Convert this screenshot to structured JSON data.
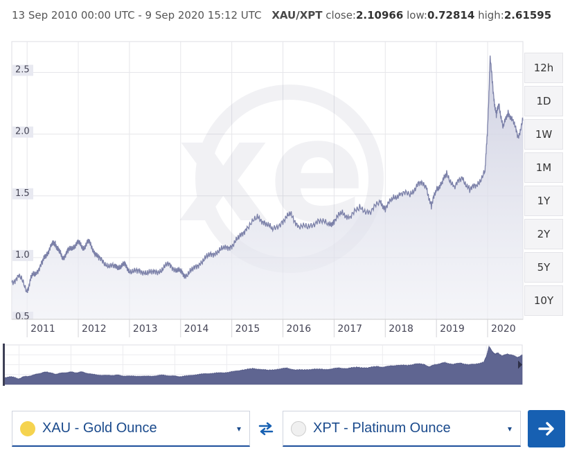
{
  "header": {
    "date_range": "13 Sep 2010 00:00 UTC - 9 Sep 2020 15:12 UTC",
    "pair": "XAU/XPT",
    "close_label": "close:",
    "close_value": "2.10966",
    "low_label": "low:",
    "low_value": "0.72814",
    "high_label": "high:",
    "high_value": "2.61595"
  },
  "watermark": "xe",
  "range_buttons": [
    "12h",
    "1D",
    "1W",
    "1M",
    "1Y",
    "2Y",
    "5Y",
    "10Y"
  ],
  "converter": {
    "from_label": "XAU - Gold Ounce",
    "to_label": "XPT - Platinum Ounce",
    "from_flag_color": "#f5d34f",
    "to_flag_color": "#f0f0f0",
    "accent_color": "#1760b2",
    "icons": {
      "caret": "▾",
      "swap": "swap-arrows-icon",
      "go": "arrow-right-icon"
    }
  },
  "chart_data": {
    "type": "area",
    "x_ticks": [
      "2011",
      "2012",
      "2013",
      "2014",
      "2015",
      "2016",
      "2017",
      "2018",
      "2019",
      "2020"
    ],
    "y_ticks": [
      "0.5",
      "1.0",
      "1.5",
      "2.0",
      "2.5"
    ],
    "ylim": [
      0.5,
      2.75
    ],
    "grid": true,
    "line_color": "#7b80a8",
    "fill_color": "#dcdde9",
    "series": [
      {
        "x": [
          2010.7,
          2010.85,
          2011.0,
          2011.08,
          2011.18,
          2011.3,
          2011.38,
          2011.48,
          2011.55,
          2011.62,
          2011.7,
          2011.8,
          2011.9,
          2012.0,
          2012.1,
          2012.2,
          2012.3,
          2012.4,
          2012.55,
          2012.7,
          2012.8,
          2012.9,
          2013.0,
          2013.15,
          2013.3,
          2013.45,
          2013.6,
          2013.75,
          2013.9,
          2014.0,
          2014.1,
          2014.25,
          2014.4,
          2014.55,
          2014.7,
          2014.85,
          2015.0,
          2015.15,
          2015.3,
          2015.5,
          2015.65,
          2015.8,
          2016.0,
          2016.15,
          2016.3,
          2016.5,
          2016.7,
          2016.9,
          2017.0,
          2017.15,
          2017.3,
          2017.5,
          2017.7,
          2017.9,
          2018.0,
          2018.15,
          2018.3,
          2018.5,
          2018.65,
          2018.8,
          2018.9,
          2019.0,
          2019.1,
          2019.2,
          2019.35,
          2019.5,
          2019.65,
          2019.8,
          2019.95,
          2020.0,
          2020.05,
          2020.12,
          2020.17,
          2020.22,
          2020.3,
          2020.4,
          2020.5,
          2020.6,
          2020.69
        ],
        "values": [
          0.8,
          0.85,
          0.73,
          0.84,
          0.88,
          0.96,
          1.03,
          1.1,
          1.12,
          1.05,
          1.0,
          1.05,
          1.09,
          1.12,
          1.08,
          1.13,
          1.06,
          0.99,
          0.95,
          0.92,
          0.93,
          0.94,
          0.9,
          0.88,
          0.89,
          0.87,
          0.9,
          0.94,
          0.91,
          0.88,
          0.86,
          0.9,
          0.97,
          1.01,
          1.05,
          1.07,
          1.1,
          1.16,
          1.25,
          1.32,
          1.29,
          1.22,
          1.3,
          1.35,
          1.26,
          1.24,
          1.31,
          1.26,
          1.3,
          1.36,
          1.33,
          1.4,
          1.37,
          1.45,
          1.4,
          1.48,
          1.52,
          1.51,
          1.61,
          1.57,
          1.42,
          1.55,
          1.6,
          1.68,
          1.57,
          1.65,
          1.55,
          1.59,
          1.7,
          2.05,
          2.62,
          2.3,
          2.15,
          2.25,
          2.05,
          2.18,
          2.1,
          1.98,
          2.11
        ]
      }
    ],
    "series_min": 0.72814,
    "series_max": 2.61595
  }
}
